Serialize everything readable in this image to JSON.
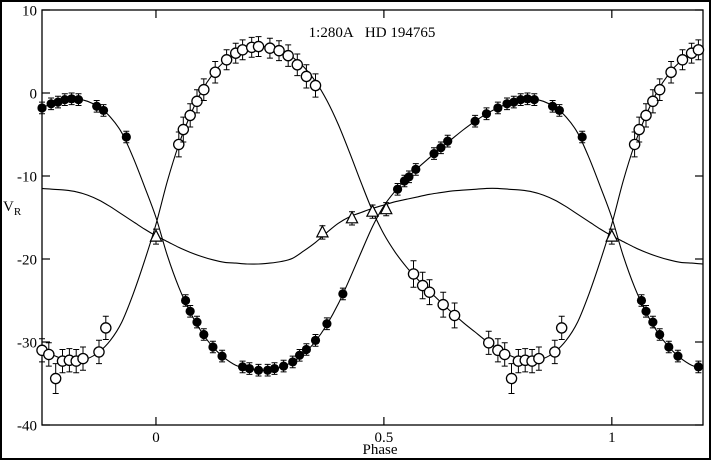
{
  "chart_data": {
    "type": "scatter",
    "title": "1:280A   HD 194765",
    "xlabel": "Phase",
    "ylabel": "V_R",
    "ylabel_parts": {
      "main": "V",
      "sub": "R"
    },
    "xlim": [
      -0.25,
      1.2
    ],
    "ylim": [
      -40,
      10
    ],
    "xtick_values": [
      0,
      0.5,
      1
    ],
    "xtick_labels": [
      "0",
      "0.5",
      "1"
    ],
    "ytick_values": [
      10,
      0,
      -10,
      -20,
      -30,
      -40
    ],
    "ytick_labels": [
      "10",
      "0",
      "-10",
      "-20",
      "-30",
      "-40"
    ],
    "grid": false,
    "legend": "none",
    "phase_folded": true,
    "axis_color": "#000000",
    "marker_color": "#000000",
    "series": [
      {
        "name": "primary-component",
        "marker": "filled-circle",
        "points": [
          [
            0.065,
            -25.0,
            0.7
          ],
          [
            0.075,
            -26.3,
            0.7
          ],
          [
            0.09,
            -27.6,
            0.7
          ],
          [
            0.105,
            -29.1,
            0.7
          ],
          [
            0.125,
            -30.6,
            0.7
          ],
          [
            0.145,
            -31.7,
            0.7
          ],
          [
            0.19,
            -33.0,
            0.7
          ],
          [
            0.205,
            -33.2,
            0.7
          ],
          [
            0.225,
            -33.4,
            0.7
          ],
          [
            0.245,
            -33.4,
            0.7
          ],
          [
            0.26,
            -33.2,
            0.7
          ],
          [
            0.28,
            -32.9,
            0.7
          ],
          [
            0.3,
            -32.4,
            0.7
          ],
          [
            0.315,
            -31.6,
            0.7
          ],
          [
            0.33,
            -30.9,
            0.7
          ],
          [
            0.35,
            -29.8,
            0.7
          ],
          [
            0.375,
            -27.8,
            0.7
          ],
          [
            0.41,
            -24.2,
            0.7
          ],
          [
            0.53,
            -11.6,
            0.7
          ],
          [
            0.545,
            -10.6,
            0.7
          ],
          [
            0.555,
            -10.1,
            0.7
          ],
          [
            0.57,
            -9.2,
            0.7
          ],
          [
            0.61,
            -7.3,
            0.7
          ],
          [
            0.625,
            -6.6,
            0.7
          ],
          [
            0.64,
            -5.8,
            0.7
          ],
          [
            0.7,
            -3.4,
            0.7
          ],
          [
            0.725,
            -2.5,
            0.7
          ],
          [
            0.75,
            -1.8,
            0.7
          ],
          [
            0.77,
            -1.3,
            0.7
          ],
          [
            0.785,
            -1.1,
            0.7
          ],
          [
            0.8,
            -0.8,
            0.7
          ],
          [
            0.815,
            -0.7,
            0.7
          ],
          [
            0.83,
            -0.8,
            0.7
          ],
          [
            0.87,
            -1.6,
            0.7
          ],
          [
            0.885,
            -2.1,
            0.7
          ],
          [
            0.935,
            -5.3,
            0.7
          ]
        ]
      },
      {
        "name": "secondary-component",
        "marker": "open-circle",
        "points": [
          [
            0.05,
            -6.2,
            1.5
          ],
          [
            0.06,
            -4.4,
            1.5
          ],
          [
            0.075,
            -2.7,
            1.4
          ],
          [
            0.09,
            -1.0,
            1.4
          ],
          [
            0.105,
            0.4,
            1.3
          ],
          [
            0.13,
            2.5,
            1.3
          ],
          [
            0.155,
            4.0,
            1.2
          ],
          [
            0.175,
            4.8,
            1.2
          ],
          [
            0.19,
            5.2,
            1.2
          ],
          [
            0.21,
            5.5,
            1.2
          ],
          [
            0.225,
            5.6,
            1.2
          ],
          [
            0.25,
            5.4,
            1.2
          ],
          [
            0.27,
            5.1,
            1.2
          ],
          [
            0.29,
            4.5,
            1.3
          ],
          [
            0.31,
            3.4,
            1.3
          ],
          [
            0.33,
            2.0,
            1.4
          ],
          [
            0.35,
            0.9,
            1.4
          ],
          [
            0.565,
            -21.8,
            1.6
          ],
          [
            0.585,
            -23.2,
            1.6
          ],
          [
            0.6,
            -24.0,
            1.5
          ],
          [
            0.63,
            -25.5,
            1.5
          ],
          [
            0.655,
            -26.8,
            1.5
          ],
          [
            0.73,
            -30.1,
            1.4
          ],
          [
            0.75,
            -31.0,
            1.4
          ],
          [
            0.765,
            -31.5,
            1.4
          ],
          [
            0.78,
            -34.4,
            1.8
          ],
          [
            0.795,
            -32.3,
            1.4
          ],
          [
            0.81,
            -32.2,
            1.4
          ],
          [
            0.825,
            -32.3,
            1.4
          ],
          [
            0.84,
            -32.0,
            1.4
          ],
          [
            0.875,
            -31.2,
            1.4
          ],
          [
            0.89,
            -28.3,
            1.4
          ]
        ]
      },
      {
        "name": "third-component",
        "marker": "open-triangle",
        "points": [
          [
            0.0,
            -17.3,
            0.9
          ],
          [
            0.365,
            -16.8,
            0.8
          ],
          [
            0.43,
            -15.1,
            0.8
          ],
          [
            0.475,
            -14.3,
            0.8
          ],
          [
            0.505,
            -14.0,
            0.8
          ]
        ]
      }
    ],
    "model_curves": [
      {
        "name": "primary-model",
        "phase_step": 0.025,
        "values": [
          -15.0,
          -19.6,
          -23.4,
          -26.4,
          -28.8,
          -30.6,
          -31.9,
          -32.8,
          -33.2,
          -33.4,
          -33.4,
          -33.0,
          -32.4,
          -31.4,
          -29.9,
          -27.9,
          -25.4,
          -22.4,
          -19.2,
          -16.1,
          -13.6,
          -11.8,
          -10.3,
          -9.0,
          -7.8,
          -6.6,
          -5.5,
          -4.4,
          -3.4,
          -2.5,
          -1.8,
          -1.2,
          -0.8,
          -0.7,
          -1.0,
          -1.7,
          -2.9,
          -4.8,
          -7.8,
          -11.3
        ]
      },
      {
        "name": "secondary-model",
        "phase_step": 0.025,
        "values": [
          -15.8,
          -10.6,
          -6.2,
          -2.7,
          0.2,
          2.3,
          3.8,
          4.8,
          5.4,
          5.6,
          5.5,
          5.1,
          4.3,
          3.1,
          1.4,
          -0.9,
          -3.8,
          -7.2,
          -10.8,
          -14.2,
          -17.0,
          -19.2,
          -21.0,
          -22.5,
          -23.9,
          -25.2,
          -26.5,
          -27.7,
          -28.8,
          -29.9,
          -30.8,
          -31.6,
          -32.1,
          -32.3,
          -32.0,
          -31.2,
          -29.8,
          -27.6,
          -24.2,
          -20.2
        ]
      },
      {
        "name": "third-body-model",
        "phase_step": 0.025,
        "values": [
          -17.2,
          -17.9,
          -18.6,
          -19.2,
          -19.7,
          -20.1,
          -20.4,
          -20.5,
          -20.6,
          -20.6,
          -20.5,
          -20.3,
          -19.9,
          -19.0,
          -18.0,
          -16.8,
          -15.7,
          -14.9,
          -14.4,
          -13.9,
          -13.5,
          -13.1,
          -12.8,
          -12.5,
          -12.2,
          -12.0,
          -11.8,
          -11.7,
          -11.6,
          -11.5,
          -11.5,
          -11.6,
          -11.7,
          -11.9,
          -12.3,
          -12.9,
          -13.7,
          -14.6,
          -15.5,
          -16.4
        ]
      }
    ]
  }
}
